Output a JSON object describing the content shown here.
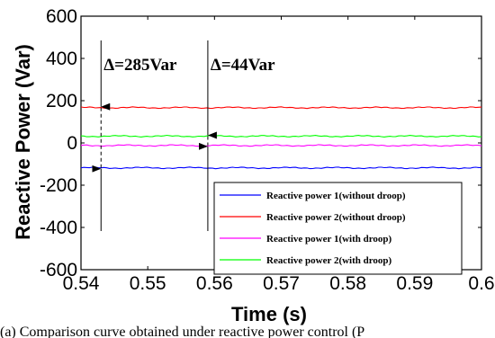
{
  "chart_data": {
    "type": "line",
    "xlabel": "Time (s)",
    "ylabel": "Reactive Power (Var)",
    "xlim": [
      0.54,
      0.6
    ],
    "ylim": [
      -600,
      600
    ],
    "x_ticks": [
      "0.54",
      "0.55",
      "0.56",
      "0.57",
      "0.58",
      "0.59",
      "0.6"
    ],
    "y_ticks": [
      "600",
      "400",
      "200",
      "0",
      "-200",
      "-400",
      "-600"
    ],
    "legend_position": "bottom-right",
    "series": [
      {
        "name": "Reactive power 1(without droop)",
        "color": "#0000ff",
        "level": -118
      },
      {
        "name": "Reactive power 2(without droop)",
        "color": "#ff0000",
        "level": 167
      },
      {
        "name": "Reactive power 1(with droop)",
        "color": "#ff00ff",
        "level": -12
      },
      {
        "name": "Reactive power 2(with droop)",
        "color": "#00ff00",
        "level": 32
      }
    ],
    "annotations": [
      {
        "text": "Δ=285Var",
        "x": 0.543,
        "y_top": 167,
        "y_bottom": -118
      },
      {
        "text": "Δ=44Var",
        "x": 0.559,
        "y_top": 32,
        "y_bottom": -12
      }
    ]
  },
  "caption": "(a) Comparison curve obtained under reactive power control (P"
}
